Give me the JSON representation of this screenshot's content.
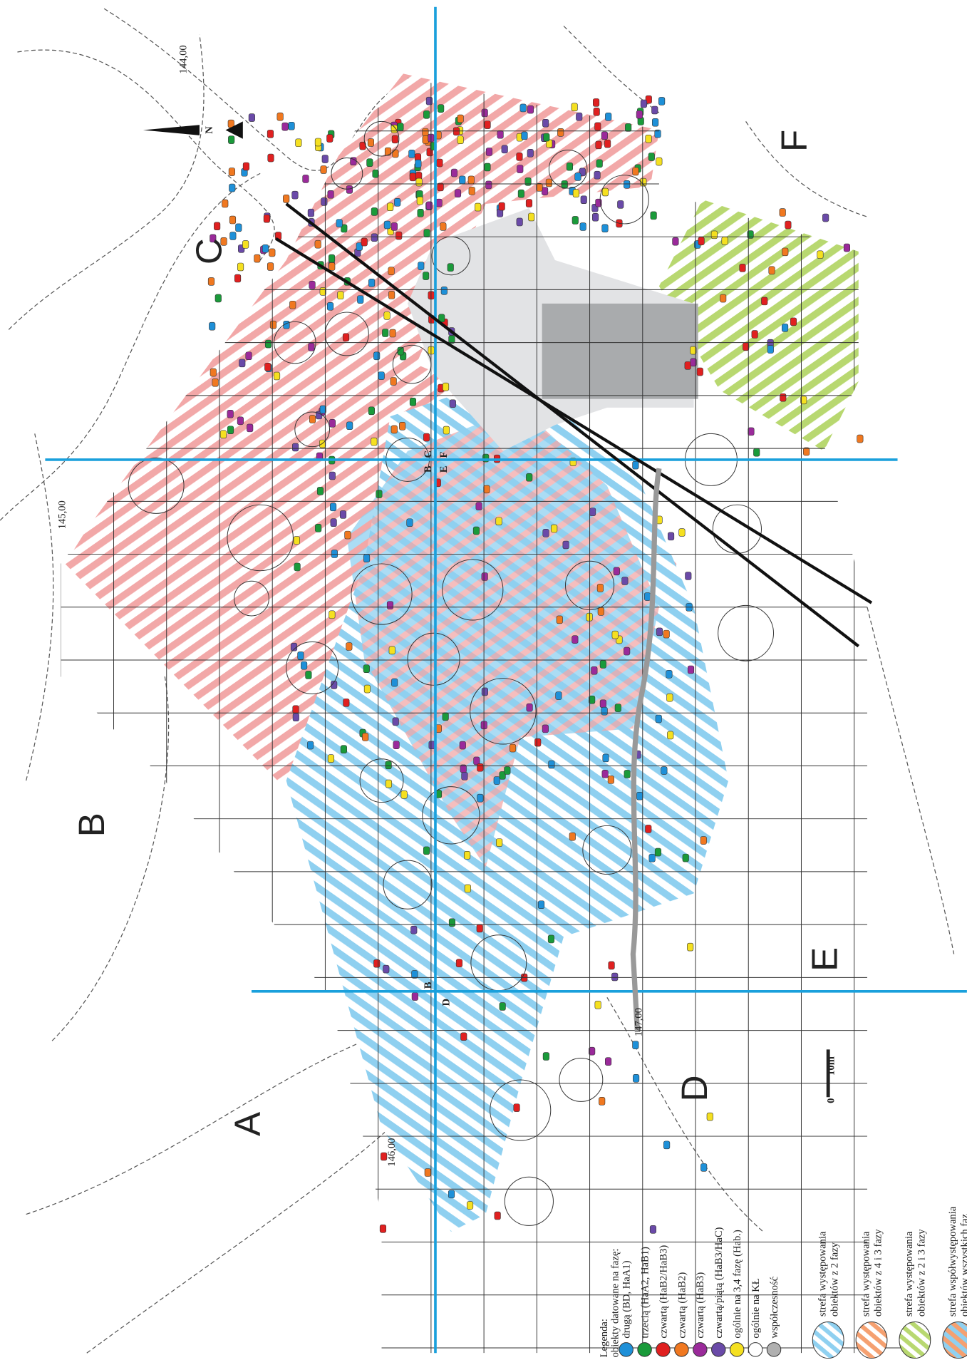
{
  "map": {
    "north_label": "N",
    "zone_letters": [
      "A",
      "B",
      "C",
      "D",
      "E",
      "F"
    ],
    "contour_labels": [
      "144,00",
      "145,00",
      "146,00",
      "147,00"
    ],
    "scale": {
      "start": "0",
      "length": "10m"
    },
    "sector_labels": [
      "B",
      "C",
      "E",
      "F",
      "B",
      "D"
    ]
  },
  "legend": {
    "title": "Legenda:",
    "subtitle": "obiekty datowane na fazę:",
    "phases": [
      {
        "label": "drugą (BD, HaA1)",
        "color": "#1e90d8"
      },
      {
        "label": "trzecią (HaA2, HaB1)",
        "color": "#1a9a3a"
      },
      {
        "label": "czwartą (HaB2/HaB3)",
        "color": "#e02020"
      },
      {
        "label": "czwartą (HaB2)",
        "color": "#f07820"
      },
      {
        "label": "czwartą (HaB3)",
        "color": "#9a2a9a"
      },
      {
        "label": "czwartą/piątą (HaB3/HaC)",
        "color": "#6a4aa8"
      },
      {
        "label": "ogólnie na 3,4 fazę (Hab.)",
        "color": "#f5e020"
      },
      {
        "label": "ogólnie na KŁ",
        "color": "#ffffff"
      },
      {
        "label": "współczesność",
        "color": "#b0b0b0"
      }
    ],
    "zones": [
      {
        "lines": [
          "strefa występowania",
          "obiektów z 2 fazy"
        ],
        "colors": [
          "#8fd0f0"
        ]
      },
      {
        "lines": [
          "strefa występowania",
          "obiektów z 4 i 3 fazy"
        ],
        "colors": [
          "#f5a070"
        ]
      },
      {
        "lines": [
          "strefa występowania",
          "obiektów z 2 i 3 fazy"
        ],
        "colors": [
          "#b8d870"
        ]
      },
      {
        "lines": [
          "strefa współwystępowania",
          "obiektów wszystkich faz"
        ],
        "colors": [
          "#8fd0f0",
          "#f5a070"
        ]
      }
    ]
  }
}
